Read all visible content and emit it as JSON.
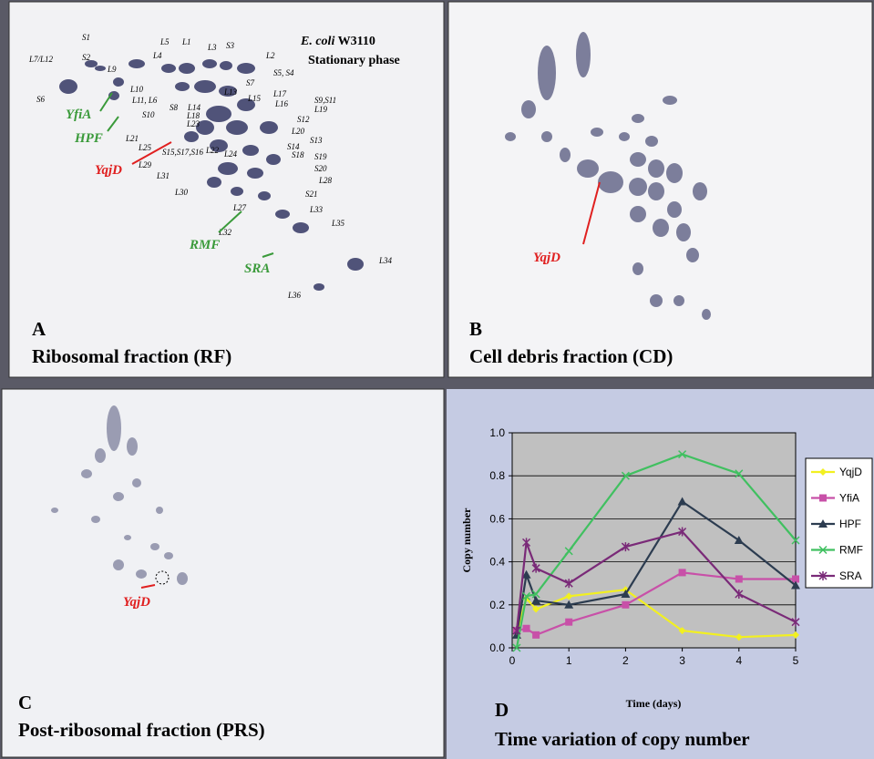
{
  "gels": [
    {
      "letter": "A",
      "caption": "Ribosomal fraction (RF)",
      "organism": "E. coli",
      "strain": "W3110",
      "phase": "Stationary phase",
      "proteins": [
        "YfiA",
        "HPF",
        "YqjD",
        "RMF",
        "SRA"
      ],
      "spots": [
        "S1",
        "L7/L12",
        "S2",
        "L5",
        "L1",
        "L3",
        "S3",
        "L2",
        "L4",
        "L9",
        "S5, S4",
        "L10",
        "S7",
        "L11, L6",
        "L13",
        "L17",
        "S9,S11",
        "L15",
        "L16",
        "L19",
        "S6",
        "S8",
        "L14",
        "S12",
        "S10",
        "L18",
        "L23",
        "L20",
        "S13",
        "S14",
        "L21",
        "L22",
        "L24",
        "S18",
        "S19",
        "L25",
        "S15,S17,S16",
        "S20",
        "L28",
        "L29",
        "L31",
        "S21",
        "L27",
        "L30",
        "L33",
        "L35",
        "L32",
        "L34",
        "L36"
      ]
    },
    {
      "letter": "B",
      "caption": "Cell debris fraction (CD)",
      "proteins": [
        "YqjD"
      ]
    },
    {
      "letter": "C",
      "caption": "Post-ribosomal fraction (PRS)",
      "proteins": [
        "YqjD"
      ]
    }
  ],
  "chart_data": {
    "type": "line",
    "panel_label": "D",
    "title": "Time variation of copy number",
    "x_label": "Time (days)",
    "y_label": "Copy number",
    "x": [
      0.08,
      0.25,
      0.42,
      1,
      2,
      3,
      4,
      5
    ],
    "xlim": [
      0,
      5
    ],
    "xticks": [
      0,
      1,
      2,
      3,
      4,
      5
    ],
    "ylim": [
      0,
      1
    ],
    "yticks": [
      {
        "value": 0,
        "label": "0.0"
      },
      {
        "value": 0.2,
        "label": "0.2"
      },
      {
        "value": 0.4,
        "label": "0.4"
      },
      {
        "value": 0.6,
        "label": "0.6"
      },
      {
        "value": 0.8,
        "label": "0.8"
      },
      {
        "value": 1,
        "label": "1.0"
      }
    ],
    "grid": true,
    "legend": "right",
    "series": [
      {
        "name": "YqjD",
        "color": "#f2f020",
        "marker": "diamond",
        "values": [
          0.07,
          0.23,
          0.18,
          0.24,
          0.27,
          0.08,
          0.05,
          0.06
        ]
      },
      {
        "name": "YfiA",
        "color": "#c850a8",
        "marker": "square",
        "values": [
          0.08,
          0.09,
          0.06,
          0.12,
          0.2,
          0.35,
          0.32,
          0.32
        ]
      },
      {
        "name": "HPF",
        "color": "#2c3c50",
        "marker": "triangle",
        "values": [
          0.06,
          0.34,
          0.22,
          0.2,
          0.25,
          0.68,
          0.5,
          0.29
        ]
      },
      {
        "name": "RMF",
        "color": "#40c060",
        "marker": "x",
        "values": [
          0.0,
          0.24,
          0.25,
          0.45,
          0.8,
          0.9,
          0.81,
          0.5
        ]
      },
      {
        "name": "SRA",
        "color": "#7a2a78",
        "marker": "star",
        "values": [
          0.08,
          0.49,
          0.37,
          0.3,
          0.47,
          0.54,
          0.25,
          0.12
        ]
      }
    ]
  }
}
